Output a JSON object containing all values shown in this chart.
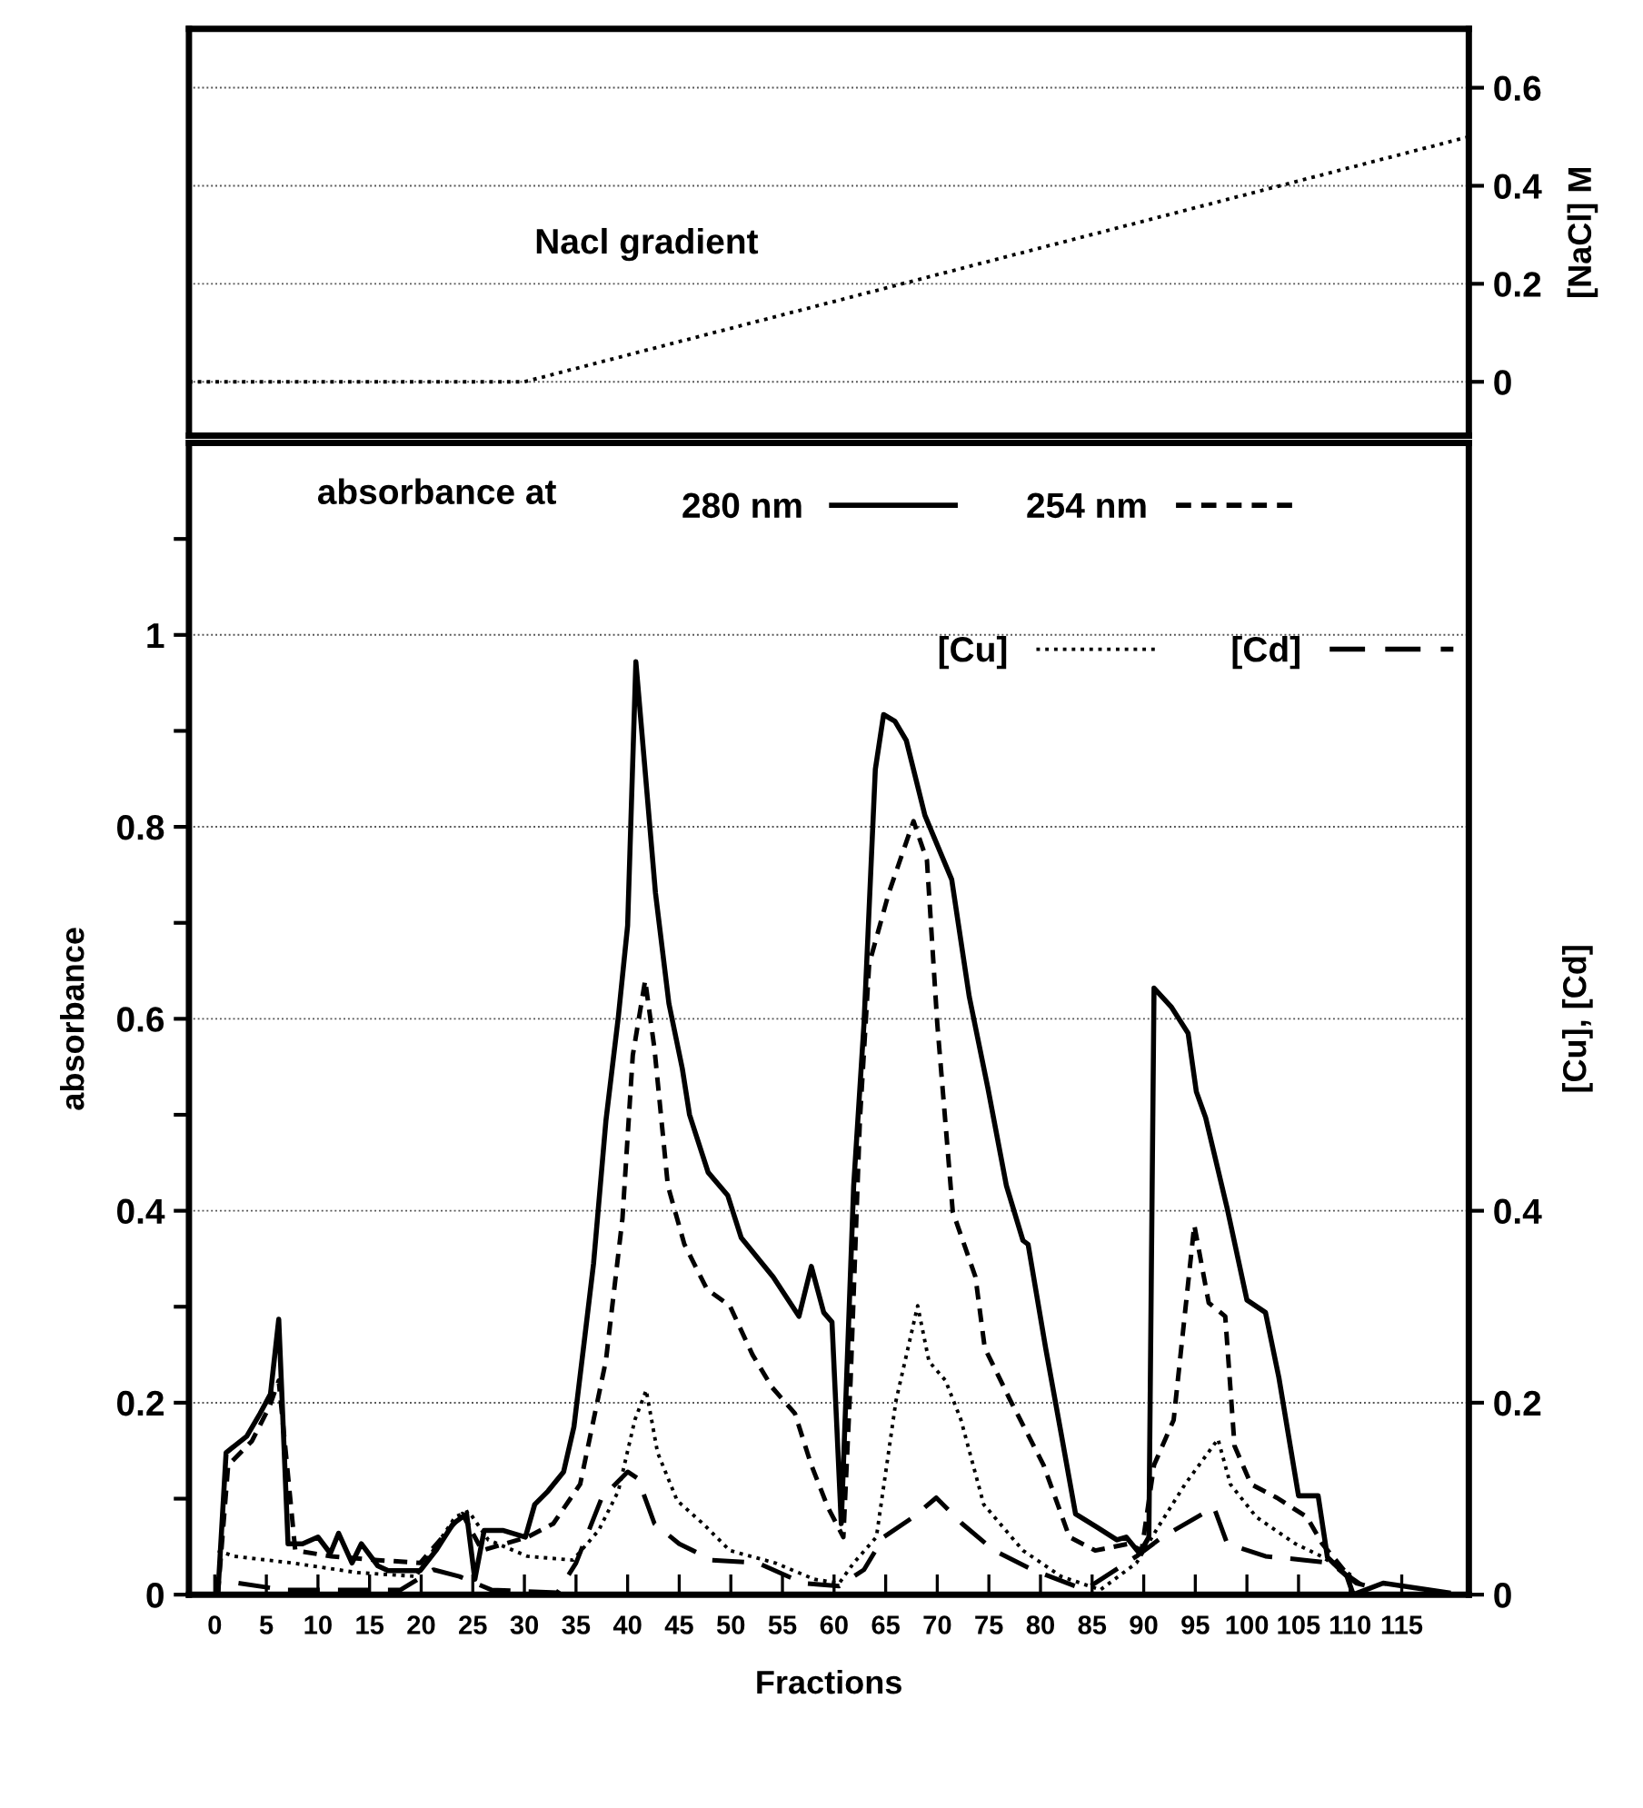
{
  "chart_data": [
    {
      "type": "line",
      "annotations": [
        "Nacl gradient"
      ],
      "ylabel": "[NaCl] M",
      "xlim": [
        -2.5,
        121.5
      ],
      "ylim": [
        -0.11,
        0.72
      ],
      "yticks": [
        0,
        0.2,
        0.4,
        0.6
      ],
      "tick_labels": "y",
      "grid": "y",
      "legend": false,
      "series": [
        {
          "color": "#000000",
          "line_style": "dotted",
          "x": [
            -2.5,
            30,
            121.5
          ],
          "values": [
            0,
            0,
            0.5
          ]
        }
      ]
    },
    {
      "type": "line",
      "xlabel": "Fractions",
      "ylabel": "absorbance",
      "y2label": "[Cu], [Cd]",
      "legend_title": "absorbance at",
      "legend": "top",
      "grid": "y",
      "xlim": [
        -2.5,
        121.5
      ],
      "xticks": [
        0,
        5,
        10,
        15,
        20,
        25,
        30,
        35,
        40,
        45,
        50,
        55,
        60,
        65,
        70,
        75,
        80,
        85,
        90,
        95,
        100,
        105,
        110,
        115
      ],
      "ylim": [
        0,
        1.2
      ],
      "yticks": [
        0,
        {
          "value": 0.1,
          "label": null
        },
        0.2,
        {
          "value": 0.3,
          "label": null
        },
        0.4,
        {
          "value": 0.5,
          "label": null
        },
        0.6,
        {
          "value": 0.7,
          "label": null
        },
        0.8,
        {
          "value": 0.9,
          "label": null
        },
        1,
        {
          "value": 1.1,
          "label": null
        }
      ],
      "y2lim": [
        0,
        1.2
      ],
      "y2ticks": [
        0,
        0.2,
        0.4
      ],
      "series": [
        {
          "name": "280 nm",
          "color": "#000000",
          "line_style": "solid",
          "x": [
            0.3,
            1.1,
            3.1,
            4.4,
            5.4,
            6.2,
            7.1,
            8.5,
            10,
            11.2,
            12,
            13.3,
            14.2,
            15.8,
            16.8,
            19.9,
            21.5,
            23.1,
            24.4,
            25.2,
            26.1,
            27.9,
            30.1,
            31.0,
            32.3,
            33.8,
            34.8,
            35.8,
            36.7,
            37.9,
            39.1,
            40.0,
            40.8,
            42.7,
            44.0,
            45.3,
            46,
            47.8,
            49.7,
            51.0,
            54.1,
            56.6,
            57.8,
            59.0,
            59.8,
            60.7,
            61.9,
            62.9,
            64.0,
            64.8,
            65.9,
            67.0,
            68.8,
            71.4,
            73.1,
            74.9,
            76.7,
            78.3,
            78.8,
            80.5,
            82.0,
            83.4,
            85.5,
            87.4,
            88.3,
            89.6,
            90.5,
            91.0,
            92.7,
            94.3,
            95.1,
            96.0,
            98.1,
            100.0,
            101.8,
            103.1,
            105.0,
            106.9,
            107.8,
            109.7,
            110.3,
            113.2,
            119.5
          ],
          "values": [
            0,
            0.148,
            0.165,
            0.189,
            0.209,
            0.287,
            0.053,
            0.053,
            0.06,
            0.043,
            0.064,
            0.033,
            0.053,
            0.03,
            0.025,
            0.025,
            0.047,
            0.074,
            0.084,
            0.016,
            0.067,
            0.067,
            0.06,
            0.094,
            0.108,
            0.128,
            0.175,
            0.264,
            0.345,
            0.494,
            0.602,
            0.697,
            0.972,
            0.731,
            0.616,
            0.548,
            0.5,
            0.44,
            0.416,
            0.372,
            0.331,
            0.29,
            0.342,
            0.294,
            0.284,
            0.074,
            0.426,
            0.595,
            0.86,
            0.917,
            0.91,
            0.89,
            0.812,
            0.745,
            0.623,
            0.528,
            0.426,
            0.369,
            0.365,
            0.257,
            0.168,
            0.084,
            0.07,
            0.057,
            0.06,
            0.043,
            0.06,
            0.632,
            0.612,
            0.585,
            0.524,
            0.497,
            0.402,
            0.307,
            0.294,
            0.226,
            0.103,
            0.103,
            0.039,
            0.019,
            0,
            0.012,
            0.002
          ]
        },
        {
          "name": "254 nm",
          "color": "#000000",
          "line_style": "dashed",
          "x": [
            0.3,
            1.3,
            3.6,
            5.3,
            6.2,
            7.0,
            7.8,
            11.3,
            15.8,
            19.9,
            24.0,
            25.9,
            30.3,
            32.8,
            35.4,
            37.9,
            39.5,
            40.5,
            41.7,
            42.6,
            43.9,
            45.5,
            47.7,
            49.9,
            52.1,
            54.0,
            56.2,
            57.8,
            59.4,
            60.9,
            61.6,
            62.5,
            63.4,
            65.3,
            67.7,
            69.0,
            70.0,
            71.5,
            73.7,
            74.6,
            77.1,
            80.3,
            82.8,
            85.3,
            88.5,
            89.8,
            91.0,
            92.9,
            94.9,
            96.3,
            97.9,
            98.8,
            100.4,
            102.9,
            105.8,
            107.3,
            109.9,
            111.8
          ],
          "values": [
            0,
            0.135,
            0.16,
            0.196,
            0.223,
            0.135,
            0.046,
            0.04,
            0.036,
            0.033,
            0.084,
            0.046,
            0.06,
            0.074,
            0.115,
            0.244,
            0.392,
            0.562,
            0.64,
            0.569,
            0.426,
            0.365,
            0.318,
            0.301,
            0.25,
            0.216,
            0.189,
            0.135,
            0.091,
            0.06,
            0.223,
            0.494,
            0.657,
            0.731,
            0.806,
            0.765,
            0.595,
            0.399,
            0.331,
            0.257,
            0.202,
            0.135,
            0.06,
            0.046,
            0.053,
            0.046,
            0.135,
            0.182,
            0.385,
            0.304,
            0.29,
            0.155,
            0.115,
            0.101,
            0.081,
            0.053,
            0.019,
            0.005
          ]
        },
        {
          "name": "[Cu]",
          "color": "#000000",
          "line_style": "dotted",
          "x": [
            0.3,
            1.9,
            7.5,
            13.8,
            19.5,
            23.3,
            24.6,
            26.5,
            30.3,
            34.7,
            37.2,
            39.1,
            40.7,
            41.8,
            42.9,
            44.8,
            47.3,
            49.9,
            54.3,
            58.1,
            60.5,
            61.9,
            64.1,
            66.0,
            68.1,
            69.2,
            70.8,
            72.3,
            74.5,
            78.3,
            82.0,
            85.8,
            89.3,
            91.2,
            94.0,
            97.2,
            98.4,
            100.9,
            104.7,
            107.2,
            110.3
          ],
          "values": [
            0.046,
            0.04,
            0.033,
            0.023,
            0.019,
            0.081,
            0.087,
            0.057,
            0.04,
            0.036,
            0.067,
            0.108,
            0.182,
            0.213,
            0.148,
            0.098,
            0.074,
            0.046,
            0.033,
            0.016,
            0.012,
            0.033,
            0.06,
            0.202,
            0.301,
            0.243,
            0.223,
            0.182,
            0.094,
            0.046,
            0.019,
            0.005,
            0.033,
            0.067,
            0.115,
            0.162,
            0.115,
            0.081,
            0.053,
            0.04,
            0.019
          ]
        },
        {
          "name": "[Cd]",
          "color": "#000000",
          "line_style": "longdash",
          "x": [
            2.3,
            6.7,
            18.0,
            21.2,
            23.7,
            26.8,
            33.2,
            35.0,
            37.5,
            40.0,
            41.0,
            42.6,
            45.0,
            48.2,
            52.6,
            57.0,
            60.5,
            62.9,
            64.8,
            67.7,
            69.9,
            72.4,
            75.5,
            79.2,
            84.3,
            89.3,
            91.8,
            96.8,
            98.1,
            101.8,
            105.6,
            108.1,
            110.6,
            113.1
          ],
          "values": [
            0.012,
            0.005,
            0.005,
            0.026,
            0.019,
            0.005,
            0.002,
            0.033,
            0.101,
            0.128,
            0.121,
            0.074,
            0.053,
            0.036,
            0.033,
            0.012,
            0.009,
            0.026,
            0.06,
            0.081,
            0.101,
            0.074,
            0.046,
            0.026,
            0.005,
            0.04,
            0.06,
            0.091,
            0.053,
            0.04,
            0.036,
            0.033,
            0.012,
            0.005
          ]
        }
      ]
    }
  ]
}
